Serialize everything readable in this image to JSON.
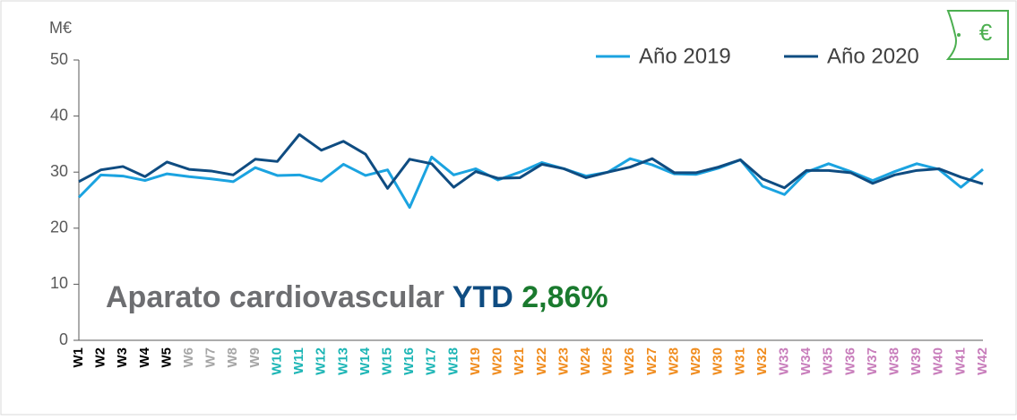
{
  "chart_data": {
    "type": "line",
    "y_unit_label": "M€",
    "categories": [
      "W1",
      "W2",
      "W3",
      "W4",
      "W5",
      "W6",
      "W7",
      "W8",
      "W9",
      "W10",
      "W11",
      "W12",
      "W13",
      "W14",
      "W15",
      "W16",
      "W17",
      "W18",
      "W19",
      "W20",
      "W21",
      "W22",
      "W23",
      "W24",
      "W25",
      "W26",
      "W27",
      "W28",
      "W29",
      "W30",
      "W31",
      "W32",
      "W33",
      "W34",
      "W35",
      "W36",
      "W37",
      "W38",
      "W39",
      "W40",
      "W41",
      "W42"
    ],
    "category_colors": [
      "#000000",
      "#000000",
      "#000000",
      "#000000",
      "#000000",
      "#a6a6a6",
      "#a6a6a6",
      "#a6a6a6",
      "#a6a6a6",
      "#1cb5b5",
      "#1cb5b5",
      "#1cb5b5",
      "#1cb5b5",
      "#1cb5b5",
      "#1cb5b5",
      "#1cb5b5",
      "#1cb5b5",
      "#1cb5b5",
      "#f08c1e",
      "#f08c1e",
      "#f08c1e",
      "#f08c1e",
      "#f08c1e",
      "#f08c1e",
      "#f08c1e",
      "#f08c1e",
      "#f08c1e",
      "#f08c1e",
      "#f08c1e",
      "#f08c1e",
      "#f08c1e",
      "#f08c1e",
      "#c87dbb",
      "#c87dbb",
      "#c87dbb",
      "#c87dbb",
      "#c87dbb",
      "#c87dbb",
      "#c87dbb",
      "#c87dbb",
      "#c87dbb",
      "#c87dbb"
    ],
    "series": [
      {
        "name": "Año 2019",
        "color": "#1ba3e0",
        "values": [
          25.5,
          29.5,
          29.3,
          28.5,
          29.7,
          29.2,
          28.8,
          28.3,
          30.8,
          29.4,
          29.5,
          28.4,
          31.4,
          29.4,
          30.4,
          23.7,
          32.7,
          29.5,
          30.6,
          28.6,
          30.0,
          31.7,
          30.6,
          29.3,
          30.0,
          32.4,
          31.3,
          29.7,
          29.6,
          30.7,
          32.2,
          27.5,
          26.0,
          30.0,
          31.5,
          30.1,
          28.5,
          30.1,
          31.5,
          30.5,
          27.3,
          30.5
        ]
      },
      {
        "name": "Año 2020",
        "color": "#0f4c81",
        "values": [
          28.3,
          30.4,
          31.0,
          29.2,
          31.8,
          30.5,
          30.2,
          29.5,
          32.3,
          31.9,
          36.7,
          33.9,
          35.5,
          33.2,
          27.1,
          32.3,
          31.5,
          27.3,
          30.1,
          28.9,
          29.0,
          31.4,
          30.6,
          29.0,
          30.0,
          30.9,
          32.4,
          29.9,
          29.9,
          30.9,
          32.2,
          28.8,
          27.2,
          30.3,
          30.3,
          29.9,
          28.0,
          29.5,
          30.3,
          30.6,
          29.1,
          27.9
        ]
      }
    ],
    "ylim": [
      0,
      50
    ],
    "yticks": [
      0,
      10,
      20,
      30,
      40,
      50
    ],
    "legend": "top-right",
    "annotation": {
      "label": "Aparato cardiovascular",
      "ytd": "YTD",
      "value": "2,86%"
    },
    "badge": "€"
  }
}
